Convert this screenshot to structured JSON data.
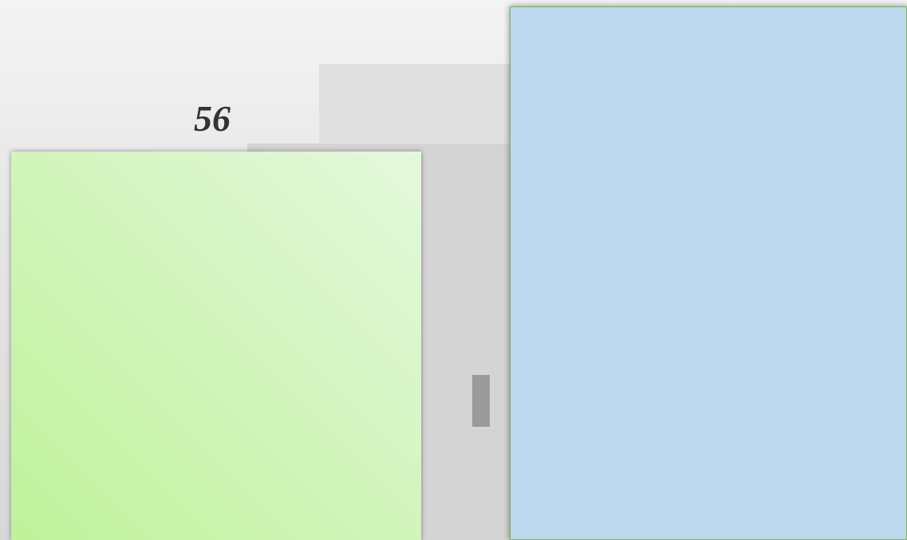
{
  "label": "56"
}
